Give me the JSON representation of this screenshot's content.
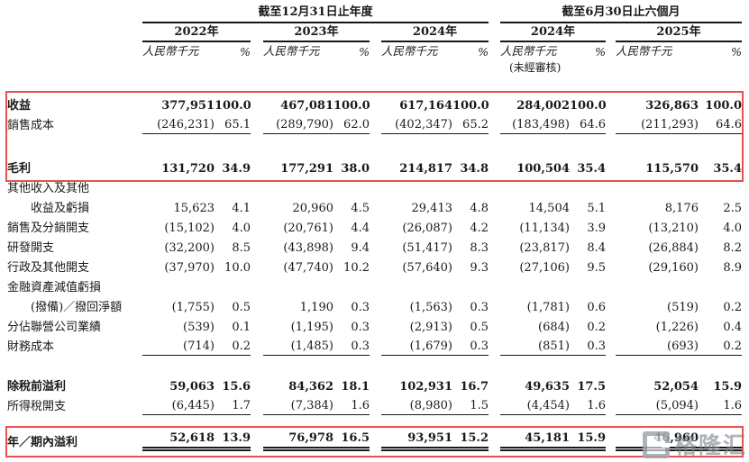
{
  "page": {
    "accent_red": "#e8514d",
    "text_color": "#1a1a1a",
    "background": "#ffffff"
  },
  "table": {
    "header": {
      "group_annual": "截至12月31日止年度",
      "group_interim": "截至6月30日止六個月",
      "unit_label": "人民幣千元",
      "pct_label": "%",
      "columns": [
        {
          "year": "2022年",
          "note": ""
        },
        {
          "year": "2023年",
          "note": ""
        },
        {
          "year": "2024年",
          "note": ""
        },
        {
          "year": "2024年",
          "note": "(未經審核)"
        },
        {
          "year": "2025年",
          "note": ""
        }
      ]
    },
    "rows": [
      {
        "label": "收益",
        "bold": true,
        "values": [
          [
            "377,951",
            "100.0"
          ],
          [
            "467,081",
            "100.0"
          ],
          [
            "617,164",
            "100.0"
          ],
          [
            "284,002",
            "100.0"
          ],
          [
            "326,863",
            "100.0"
          ]
        ]
      },
      {
        "label": "銷售成本",
        "rule": "single",
        "values": [
          [
            "(246,231)",
            "65.1"
          ],
          [
            "(289,790)",
            "62.0"
          ],
          [
            "(402,347)",
            "65.2"
          ],
          [
            "(183,498)",
            "64.6"
          ],
          [
            "(211,293)",
            "64.6"
          ]
        ]
      },
      {
        "spacer": 26
      },
      {
        "label": "毛利",
        "bold": true,
        "values": [
          [
            "131,720",
            "34.9"
          ],
          [
            "177,291",
            "38.0"
          ],
          [
            "214,817",
            "34.8"
          ],
          [
            "100,504",
            "35.4"
          ],
          [
            "115,570",
            "35.4"
          ]
        ]
      },
      {
        "label": "其他收入及其他",
        "labelOnly": true
      },
      {
        "label": "收益及虧損",
        "indent": true,
        "values": [
          [
            "15,623",
            "4.1"
          ],
          [
            "20,960",
            "4.5"
          ],
          [
            "29,413",
            "4.8"
          ],
          [
            "14,504",
            "5.1"
          ],
          [
            "8,176",
            "2.5"
          ]
        ]
      },
      {
        "label": "銷售及分銷開支",
        "values": [
          [
            "(15,102)",
            "4.0"
          ],
          [
            "(20,761)",
            "4.4"
          ],
          [
            "(26,087)",
            "4.2"
          ],
          [
            "(11,134)",
            "3.9"
          ],
          [
            "(13,210)",
            "4.0"
          ]
        ]
      },
      {
        "label": "研發開支",
        "values": [
          [
            "(32,200)",
            "8.5"
          ],
          [
            "(43,898)",
            "9.4"
          ],
          [
            "(51,417)",
            "8.3"
          ],
          [
            "(23,817)",
            "8.4"
          ],
          [
            "(26,884)",
            "8.2"
          ]
        ]
      },
      {
        "label": "行政及其他開支",
        "values": [
          [
            "(37,970)",
            "10.0"
          ],
          [
            "(47,740)",
            "10.2"
          ],
          [
            "(57,640)",
            "9.3"
          ],
          [
            "(27,106)",
            "9.5"
          ],
          [
            "(29,160)",
            "8.9"
          ]
        ]
      },
      {
        "label": "金融資產減值虧損",
        "labelOnly": true
      },
      {
        "label": "(撥備)／撥回淨額",
        "indent": true,
        "values": [
          [
            "(1,755)",
            "0.5"
          ],
          [
            "1,190",
            "0.3"
          ],
          [
            "(1,563)",
            "0.3"
          ],
          [
            "(1,781)",
            "0.6"
          ],
          [
            "(519)",
            "0.2"
          ]
        ]
      },
      {
        "label": "分佔聯營公司業績",
        "values": [
          [
            "(539)",
            "0.1"
          ],
          [
            "(1,195)",
            "0.3"
          ],
          [
            "(2,913)",
            "0.5"
          ],
          [
            "(684)",
            "0.2"
          ],
          [
            "(1,226)",
            "0.4"
          ]
        ]
      },
      {
        "label": "財務成本",
        "rule": "single",
        "values": [
          [
            "(714)",
            "0.2"
          ],
          [
            "(1,485)",
            "0.3"
          ],
          [
            "(1,679)",
            "0.3"
          ],
          [
            "(851)",
            "0.3"
          ],
          [
            "(693)",
            "0.2"
          ]
        ]
      },
      {
        "spacer": 22
      },
      {
        "label": "除稅前溢利",
        "bold": true,
        "values": [
          [
            "59,063",
            "15.6"
          ],
          [
            "84,362",
            "18.1"
          ],
          [
            "102,931",
            "16.7"
          ],
          [
            "49,635",
            "17.5"
          ],
          [
            "52,054",
            "15.9"
          ]
        ]
      },
      {
        "label": "所得稅開支",
        "rule": "single",
        "values": [
          [
            "(6,445)",
            "1.7"
          ],
          [
            "(7,384)",
            "1.6"
          ],
          [
            "(8,980)",
            "1.5"
          ],
          [
            "(4,454)",
            "1.6"
          ],
          [
            "(5,094)",
            "1.6"
          ]
        ]
      },
      {
        "spacer": 16
      },
      {
        "label": "年／期內溢利",
        "bold": true,
        "rule": "double",
        "tall": true,
        "values": [
          [
            "52,618",
            "13.9"
          ],
          [
            "76,978",
            "16.5"
          ],
          [
            "93,951",
            "15.2"
          ],
          [
            "45,181",
            "15.9"
          ],
          [
            "46,960",
            ""
          ]
        ]
      }
    ]
  },
  "watermark": {
    "text": "格隆汇"
  }
}
